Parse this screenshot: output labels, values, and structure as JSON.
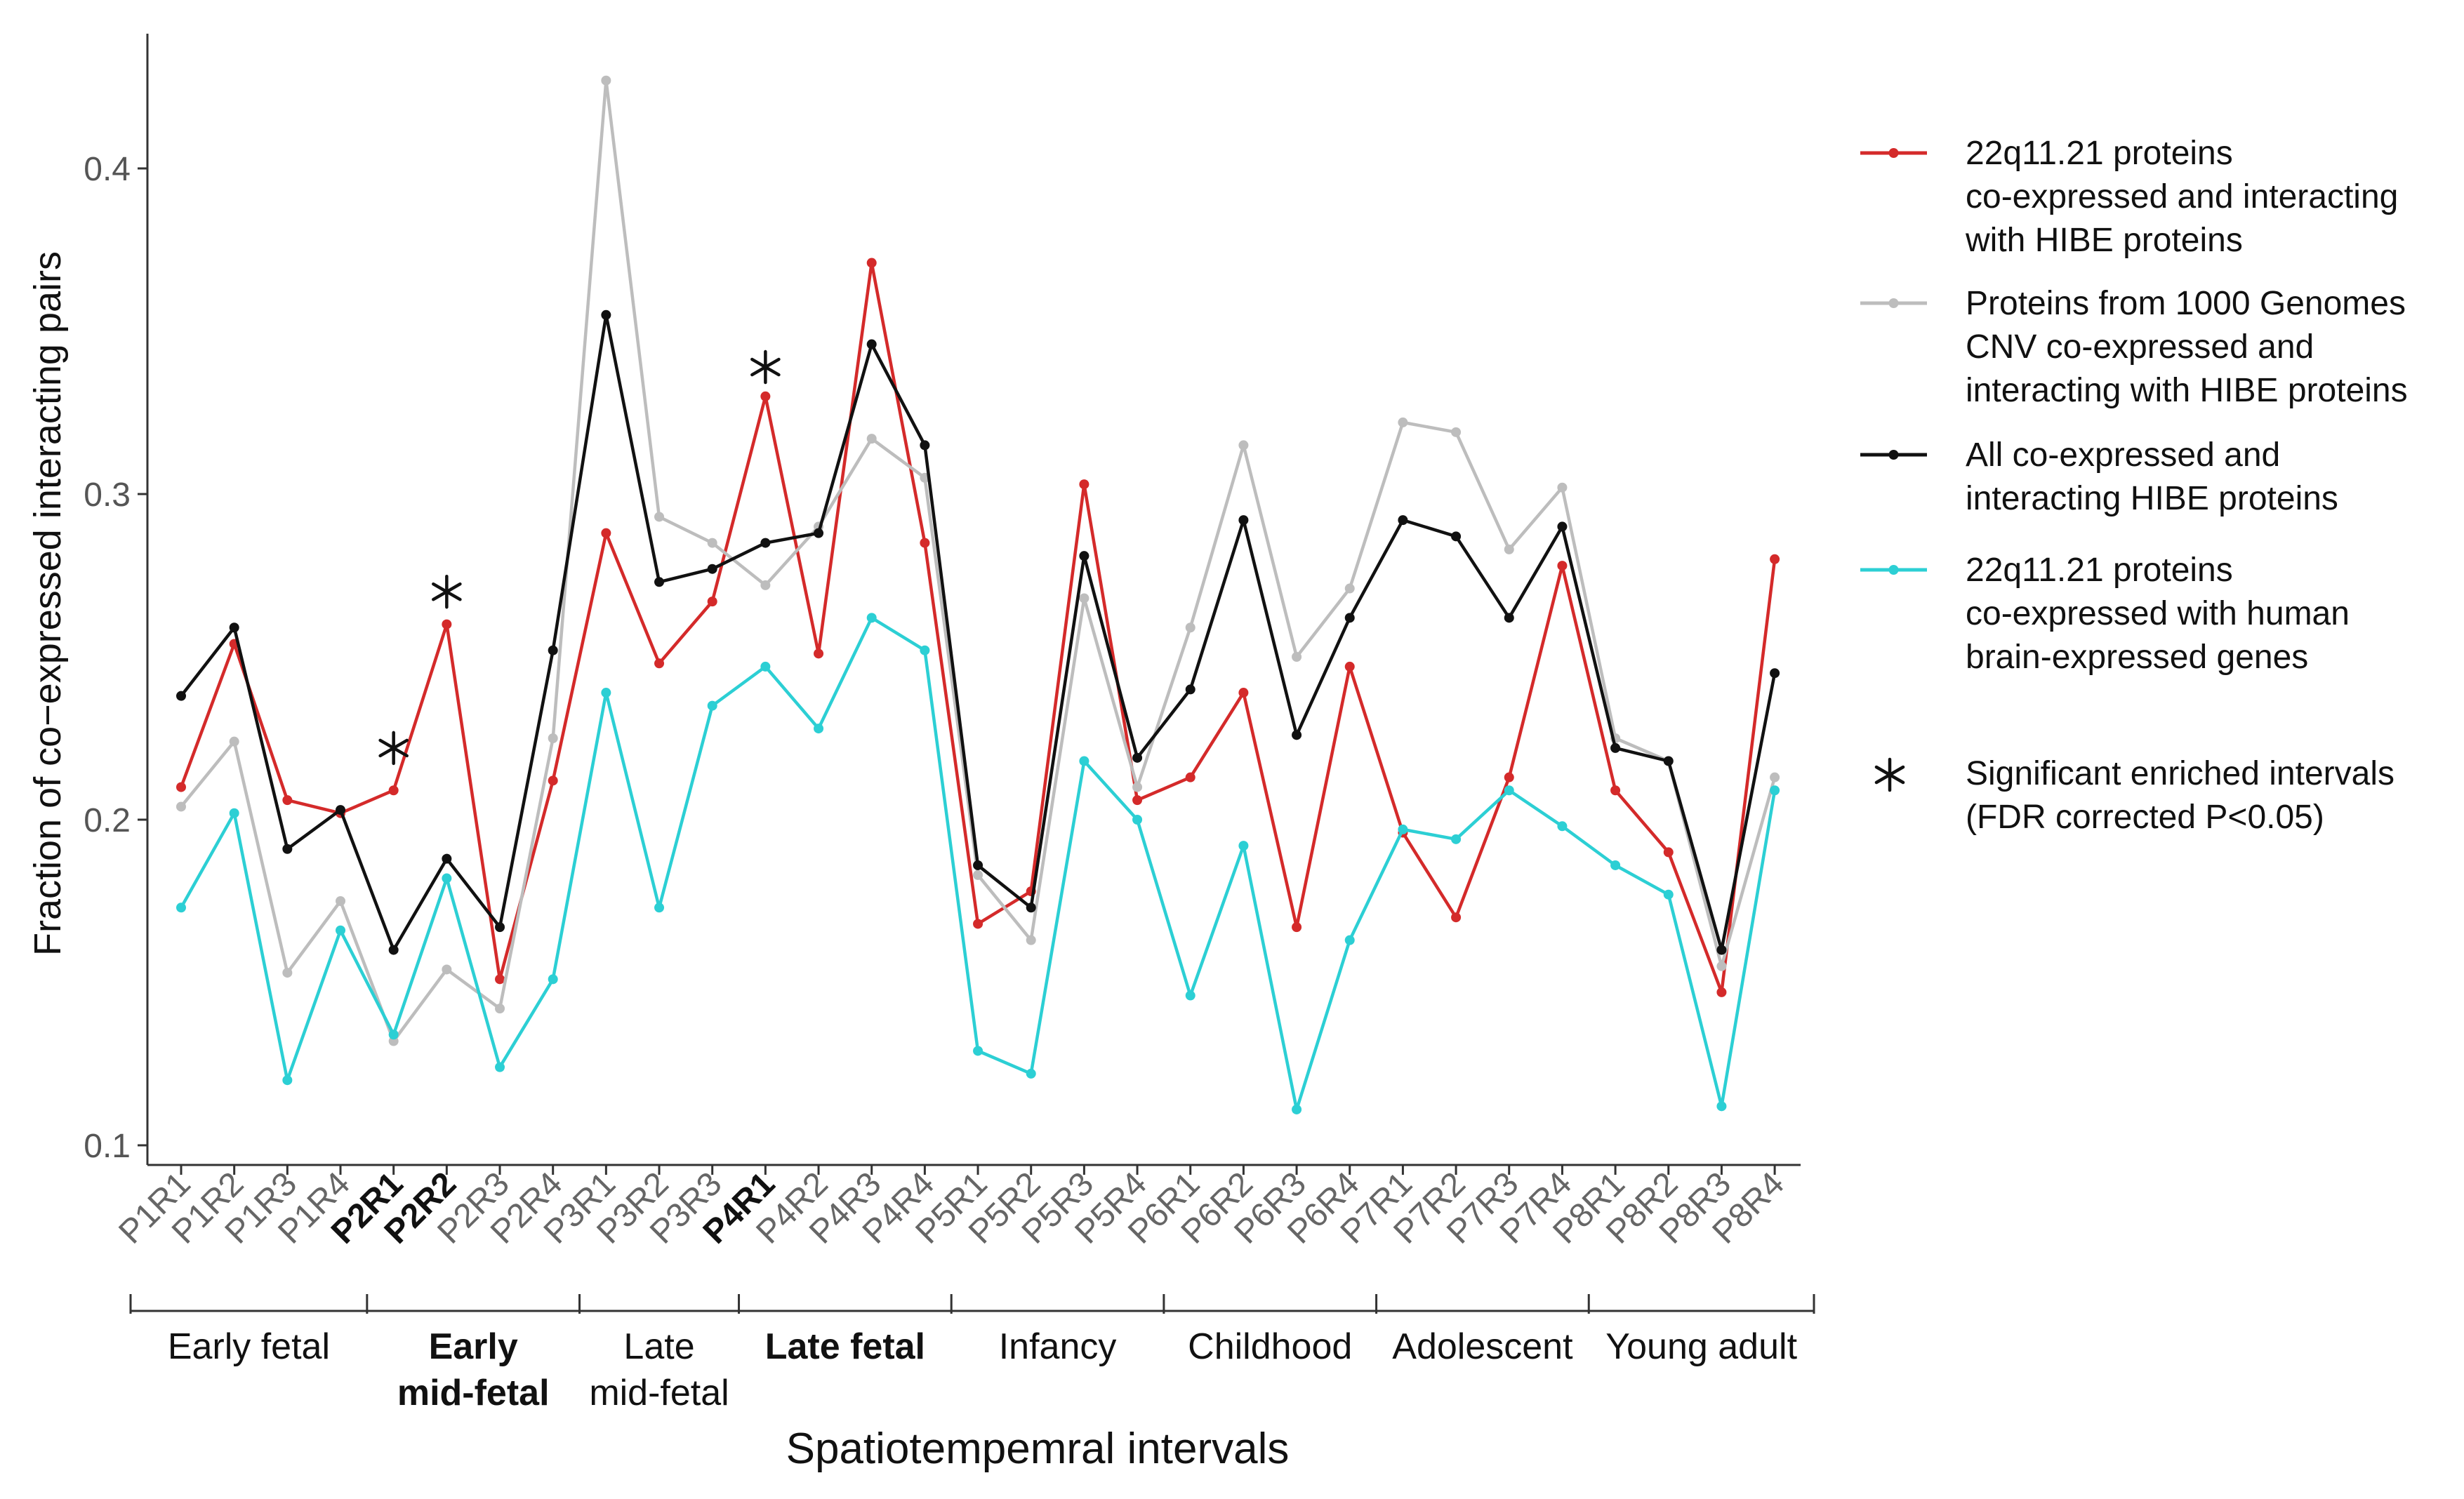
{
  "chart_data": {
    "type": "line",
    "xlabel": "Spatiotempemral intervals",
    "ylabel": "Fraction of co−expressed interacting pairs",
    "ylim": [
      0.095,
      0.445
    ],
    "yticks": [
      0.1,
      0.2,
      0.3,
      0.4
    ],
    "ytick_labels": [
      "0.1",
      "0.2",
      "0.3",
      "0.4"
    ],
    "grid": false,
    "legend_position": "right",
    "categories": [
      "P1R1",
      "P1R2",
      "P1R3",
      "P1R4",
      "P2R1",
      "P2R2",
      "P2R3",
      "P2R4",
      "P3R1",
      "P3R2",
      "P3R3",
      "P4R1",
      "P4R2",
      "P4R3",
      "P4R4",
      "P5R1",
      "P5R2",
      "P5R3",
      "P5R4",
      "P6R1",
      "P6R2",
      "P6R3",
      "P6R4",
      "P7R1",
      "P7R2",
      "P7R3",
      "P7R4",
      "P8R1",
      "P8R2",
      "P8R3",
      "P8R4"
    ],
    "bold_categories": [
      "P2R1",
      "P2R2",
      "P4R1"
    ],
    "series": [
      {
        "name": "22q11.21 proteins co-expressed and interacting with HIBE proteins",
        "legend_lines": [
          "22q11.21 proteins",
          "co-expressed and interacting",
          "with HIBE proteins"
        ],
        "color": "#d42a2a",
        "values": [
          0.21,
          0.254,
          0.206,
          0.202,
          0.209,
          0.26,
          0.151,
          0.212,
          0.288,
          0.248,
          0.267,
          0.33,
          0.251,
          0.371,
          0.285,
          0.168,
          0.178,
          0.303,
          0.206,
          0.213,
          0.239,
          0.167,
          0.247,
          0.196,
          0.17,
          0.213,
          0.278,
          0.209,
          0.19,
          0.147,
          0.28
        ]
      },
      {
        "name": "Proteins from 1000 Genomes CNV co-expressed and interacting with HIBE proteins",
        "legend_lines": [
          "Proteins from 1000 Genomes",
          "CNV co-expressed and",
          "interacting with HIBE proteins"
        ],
        "color": "#bdbdbd",
        "values": [
          0.204,
          0.224,
          0.153,
          0.175,
          0.132,
          0.154,
          0.142,
          0.225,
          0.427,
          0.293,
          0.285,
          0.272,
          0.29,
          0.317,
          0.305,
          0.183,
          0.163,
          0.268,
          0.21,
          0.259,
          0.315,
          0.25,
          0.271,
          0.322,
          0.319,
          0.283,
          0.302,
          0.225,
          0.218,
          0.155,
          0.213
        ]
      },
      {
        "name": "All co-expressed and interacting HIBE proteins",
        "legend_lines": [
          "All co-expressed and",
          "interacting HIBE proteins"
        ],
        "color": "#111111",
        "values": [
          0.238,
          0.259,
          0.191,
          0.203,
          0.16,
          0.188,
          0.167,
          0.252,
          0.355,
          0.273,
          0.277,
          0.285,
          0.288,
          0.346,
          0.315,
          0.186,
          0.173,
          0.281,
          0.219,
          0.24,
          0.292,
          0.226,
          0.262,
          0.292,
          0.287,
          0.262,
          0.29,
          0.222,
          0.218,
          0.16,
          0.245
        ]
      },
      {
        "name": "22q11.21 proteins co-expressed with human brain-expressed genes",
        "legend_lines": [
          "22q11.21 proteins",
          "co-expressed with human",
          "brain-expressed genes"
        ],
        "color": "#2ccfd4",
        "values": [
          0.173,
          0.202,
          0.12,
          0.166,
          0.134,
          0.182,
          0.124,
          0.151,
          0.239,
          0.173,
          0.235,
          0.247,
          0.228,
          0.262,
          0.252,
          0.129,
          0.122,
          0.218,
          0.2,
          0.146,
          0.192,
          0.111,
          0.163,
          0.197,
          0.194,
          0.209,
          0.198,
          0.186,
          0.177,
          0.112,
          0.209
        ]
      }
    ],
    "significance_marks": [
      {
        "category": "P2R1",
        "value": 0.222
      },
      {
        "category": "P2R2",
        "value": 0.27
      },
      {
        "category": "P4R1",
        "value": 0.339
      }
    ],
    "significance_legend_lines": [
      "Significant enriched intervals",
      "(FDR corrected P<0.05)"
    ],
    "groups": [
      {
        "label_lines": [
          "Early fetal"
        ],
        "start": 0,
        "end": 3,
        "bold": false
      },
      {
        "label_lines": [
          "Early",
          "mid-fetal"
        ],
        "start": 4,
        "end": 7,
        "bold": true
      },
      {
        "label_lines": [
          "Late",
          "mid-fetal"
        ],
        "start": 8,
        "end": 10,
        "bold": false
      },
      {
        "label_lines": [
          "Late fetal"
        ],
        "start": 11,
        "end": 14,
        "bold": true
      },
      {
        "label_lines": [
          "Infancy"
        ],
        "start": 15,
        "end": 18,
        "bold": false
      },
      {
        "label_lines": [
          "Childhood"
        ],
        "start": 19,
        "end": 22,
        "bold": false
      },
      {
        "label_lines": [
          "Adolescent"
        ],
        "start": 23,
        "end": 26,
        "bold": false
      },
      {
        "label_lines": [
          "Young adult"
        ],
        "start": 27,
        "end": 30,
        "bold": false
      }
    ]
  }
}
